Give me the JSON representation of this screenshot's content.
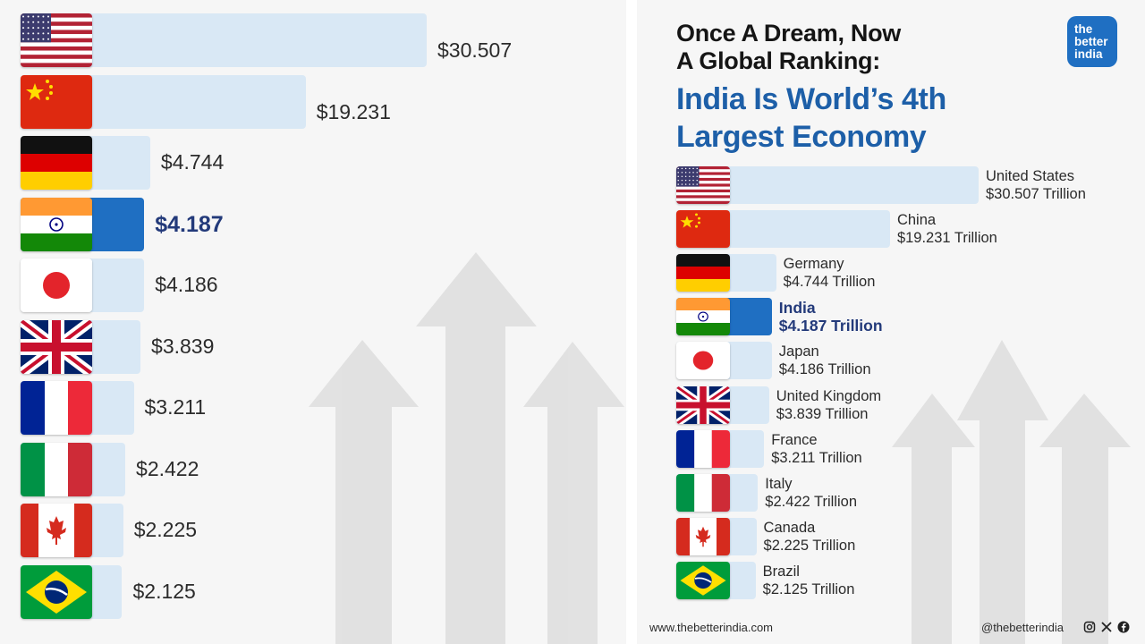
{
  "header": {
    "title_line1": "Once A Dream, Now",
    "title_line2": "A Global Ranking:",
    "headline_line1": "India Is World’s 4th",
    "headline_line2": "Largest Economy"
  },
  "logo": {
    "line1": "the",
    "line2": "better",
    "line3": "india"
  },
  "footer": {
    "website": "www.thebetterindia.com",
    "handle": "@thebetterindia",
    "social_icons": [
      "instagram-icon",
      "x-icon",
      "facebook-icon"
    ]
  },
  "colors": {
    "bar": "#d9e8f5",
    "highlight_bar": "#1f6fc2",
    "highlight_text": "#233a7a",
    "headline": "#1d5fa8",
    "arrow": "#dedede"
  },
  "chart_data": [
    {
      "type": "bar",
      "orientation": "horizontal",
      "categories": [
        "United States",
        "China",
        "Germany",
        "India",
        "Japan",
        "United Kingdom",
        "France",
        "Italy",
        "Canada",
        "Brazil"
      ],
      "values": [
        30.507,
        19.231,
        4.744,
        4.187,
        4.186,
        3.839,
        3.211,
        2.422,
        2.225,
        2.125
      ],
      "value_labels": [
        "$30.507",
        "$19.231",
        "$4.744",
        "$4.187",
        "$4.186",
        "$3.839",
        "$3.211",
        "$2.422",
        "$2.225",
        "$2.125"
      ],
      "highlight": "India",
      "flags": [
        "us",
        "china",
        "germany",
        "india",
        "japan",
        "uk",
        "france",
        "italy",
        "canada",
        "brazil"
      ]
    },
    {
      "type": "bar",
      "orientation": "horizontal",
      "categories": [
        "United States",
        "China",
        "Germany",
        "India",
        "Japan",
        "United Kingdom",
        "France",
        "Italy",
        "Canada",
        "Brazil"
      ],
      "values": [
        30.507,
        19.231,
        4.744,
        4.187,
        4.186,
        3.839,
        3.211,
        2.422,
        2.225,
        2.125
      ],
      "value_labels": [
        "$30.507 Trillion",
        "$19.231 Trillion",
        "$4.744 Trillion",
        "$4.187 Trillion",
        "$4.186 Trillion",
        "$3.839 Trillion",
        "$3.211 Trillion",
        "$2.422 Trillion",
        "$2.225 Trillion",
        "$2.125 Trillion"
      ],
      "highlight": "India",
      "flags": [
        "us",
        "china",
        "germany",
        "india",
        "japan",
        "uk",
        "france",
        "italy",
        "canada",
        "brazil"
      ]
    }
  ]
}
